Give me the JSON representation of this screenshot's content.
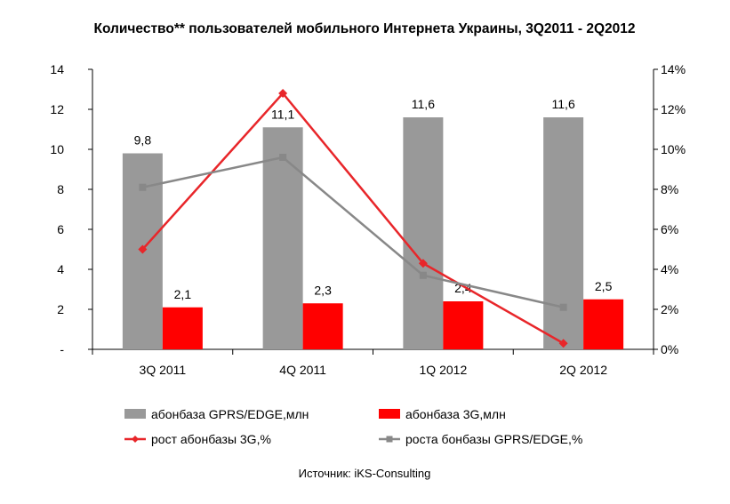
{
  "chart_data": {
    "type": "bar",
    "title": "Количество** пользователей мобильного Интернета Украины, 3Q2011 - 2Q2012",
    "categories": [
      "3Q 2011",
      "4Q 2011",
      "1Q 2012",
      "2Q 2012"
    ],
    "ylim": [
      0,
      14
    ],
    "y2lim": [
      0,
      14
    ],
    "y_ticks": [
      "-",
      "2",
      "4",
      "6",
      "8",
      "10",
      "12",
      "14"
    ],
    "y2_ticks": [
      "0%",
      "2%",
      "4%",
      "6%",
      "8%",
      "10%",
      "12%",
      "14%"
    ],
    "series": [
      {
        "name": "абонбаза GPRS/EDGE,млн",
        "kind": "bar",
        "axis": "left",
        "color": "#999999",
        "values": [
          9.8,
          11.1,
          11.6,
          11.6
        ],
        "labels": [
          "9,8",
          "11,1",
          "11,6",
          "11,6"
        ]
      },
      {
        "name": "абонбаза 3G,млн",
        "kind": "bar",
        "axis": "left",
        "color": "#ff0000",
        "values": [
          2.1,
          2.3,
          2.4,
          2.5
        ],
        "labels": [
          "2,1",
          "2,3",
          "2,4",
          "2,5"
        ]
      },
      {
        "name": "рост абонбазы 3G,%",
        "kind": "line",
        "axis": "right",
        "color": "#e8262a",
        "marker": "diamond",
        "values": [
          5.0,
          12.8,
          4.3,
          0.3
        ]
      },
      {
        "name": "роста бонбазы GPRS/EDGE,%",
        "kind": "line",
        "axis": "right",
        "color": "#888888",
        "marker": "square",
        "values": [
          8.1,
          9.6,
          3.7,
          2.1
        ]
      }
    ],
    "legend": "bottom",
    "grid": false,
    "source": "Источник: iKS-Consulting"
  }
}
